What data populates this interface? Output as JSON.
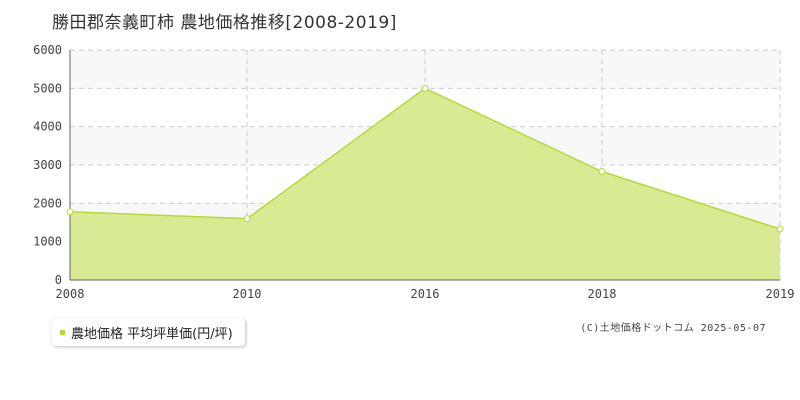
{
  "title": "勝田郡奈義町柿 農地価格推移[2008-2019]",
  "chart_data": {
    "type": "area",
    "x": [
      "2008",
      "2010",
      "2016",
      "2018",
      "2019"
    ],
    "series": [
      {
        "name": "農地価格 平均坪単価(円/坪)",
        "values": [
          1780,
          1600,
          5000,
          2830,
          1330
        ]
      }
    ],
    "ylim": [
      0,
      6000
    ],
    "yticks": [
      "0",
      "1000",
      "2000",
      "3000",
      "4000",
      "5000",
      "6000"
    ],
    "grid": true,
    "legend_position": "bottom-left",
    "colors": {
      "fill": "#d8eb93",
      "line": "#b5d93a",
      "marker_fill": "#ffffff",
      "band": "#f8f8fa",
      "grid": "#cccccc"
    }
  },
  "legend": {
    "label": "農地価格 平均坪単価(円/坪)"
  },
  "credit": "(C)土地価格ドットコム 2025-05-07"
}
